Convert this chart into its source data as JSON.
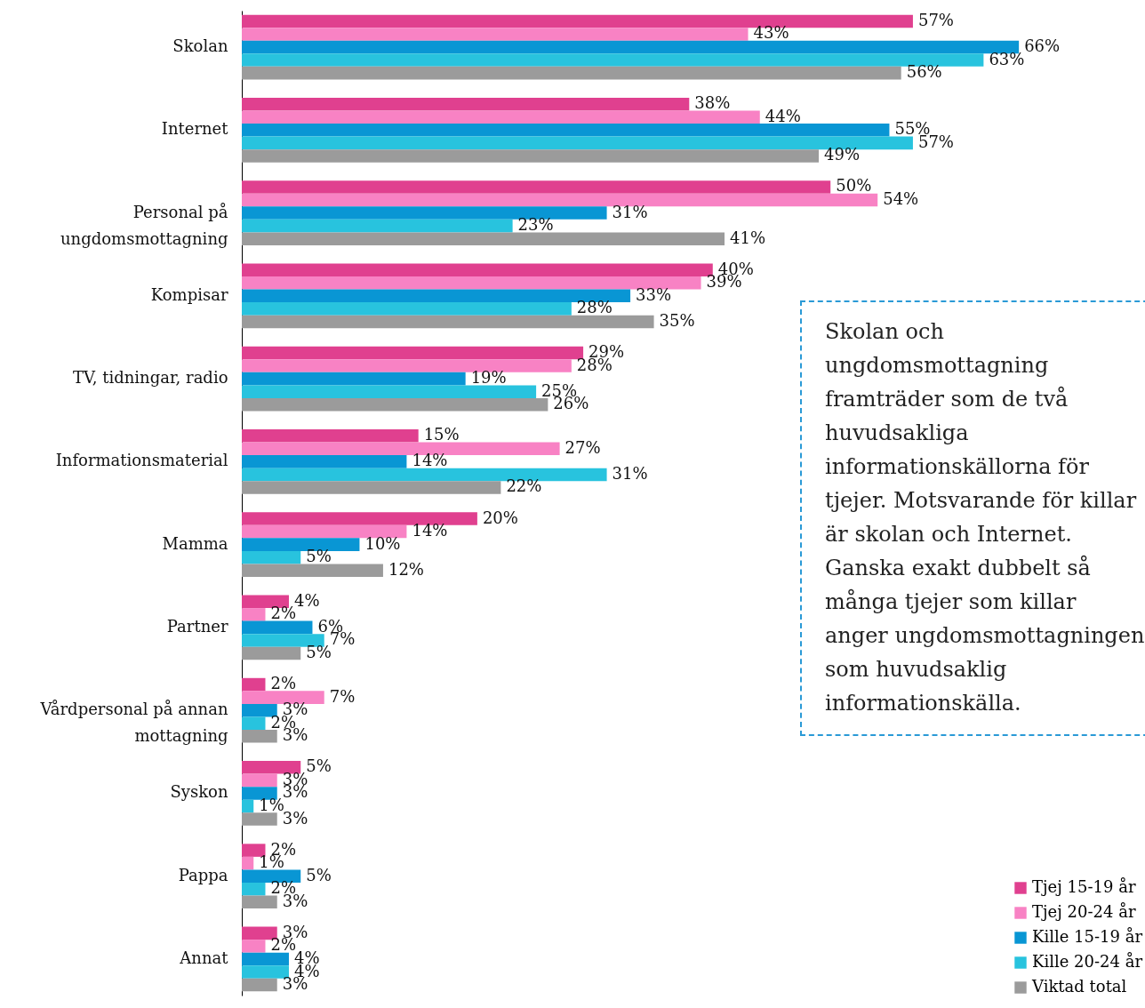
{
  "chart_data": {
    "type": "bar",
    "orientation": "horizontal",
    "data_labels": true,
    "legend": "bottom right",
    "grid": false,
    "categories": [
      "Skolan",
      "Internet",
      "Personal på ungdomsmottagning",
      "Kompisar",
      "TV, tidningar, radio",
      "Informationsmaterial",
      "Mamma",
      "Partner",
      "Vårdpersonal på annan mottagning",
      "Syskon",
      "Pappa",
      "Annat"
    ],
    "series": [
      {
        "name": "Tjej 15-19 år",
        "color": "#e0408f",
        "values": [
          57,
          38,
          50,
          40,
          29,
          15,
          20,
          4,
          2,
          5,
          2,
          3
        ],
        "value_labels": [
          "57%",
          "38%",
          "50%",
          "40%",
          "29%",
          "15%",
          "20%",
          "4%",
          "2%",
          "5%",
          "2%",
          "3%"
        ]
      },
      {
        "name": "Tjej 20-24 år",
        "color": "#f882c4",
        "values": [
          43,
          44,
          54,
          39,
          28,
          27,
          14,
          2,
          7,
          3,
          1,
          2
        ],
        "value_labels": [
          "43%",
          "44%",
          "54%",
          "39%",
          "28%",
          "27%",
          "14%",
          "2%",
          "7%",
          "3%",
          "1%",
          "2%"
        ]
      },
      {
        "name": "Kille 15-19 år",
        "color": "#0996d4",
        "values": [
          66,
          55,
          31,
          33,
          19,
          14,
          10,
          6,
          3,
          3,
          5,
          4
        ],
        "value_labels": [
          "66%",
          "55%",
          "31%",
          "33%",
          "19%",
          "14%",
          "10%",
          "6%",
          "3%",
          "3%",
          "5%",
          "4%"
        ]
      },
      {
        "name": "Kille 20-24 år",
        "color": "#28c3de",
        "values": [
          63,
          57,
          23,
          28,
          25,
          31,
          5,
          7,
          2,
          1,
          2,
          4
        ],
        "value_labels": [
          "63%",
          "57%",
          "23%",
          "28%",
          "25%",
          "31%",
          "5%",
          "7%",
          "2%",
          "1%",
          "2%",
          "4%"
        ]
      },
      {
        "name": "Viktad total",
        "color": "#9b9b9b",
        "values": [
          56,
          49,
          41,
          35,
          26,
          22,
          12,
          5,
          3,
          3,
          3,
          3
        ],
        "value_labels": [
          "56%",
          "49%",
          "41%",
          "35%",
          "26%",
          "22%",
          "12%",
          "5%",
          "3%",
          "3%",
          "3%",
          "3%"
        ]
      }
    ],
    "annotations": [
      "Skolan och ungdomsmottagning framträder som de två huvudsakliga informationskällorna för tjejer. Motsvarande för killar är skolan och Internet. Ganska exakt dubbelt så många tjejer som killar anger ungdomsmottagningen som huvudsaklig informationskälla."
    ]
  }
}
